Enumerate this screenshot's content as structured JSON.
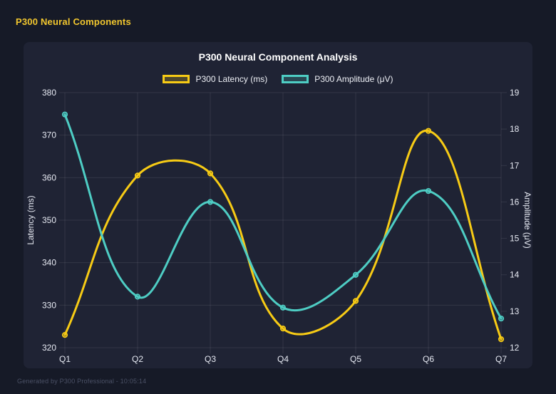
{
  "app": {
    "title": "P300 Neural Components"
  },
  "footer": {
    "note": "Generated by P300 Professional - 10:05:14"
  },
  "colors": {
    "background": "#161A27",
    "card_background": "#1F2334",
    "header_accent": "#F2C72E",
    "latency_series": "#F7CB15",
    "amplitude_series": "#4ECDC4",
    "grid": "rgba(255,255,255,0.09)",
    "tick_text": "#E6E9F2",
    "title_text": "#FFFFFF",
    "footer_text": "#4B5166"
  },
  "chart_data": {
    "type": "line",
    "title": "P300 Neural Component Analysis",
    "categories": [
      "Q1",
      "Q2",
      "Q3",
      "Q4",
      "Q5",
      "Q6",
      "Q7"
    ],
    "series": [
      {
        "name": "P300 Latency (ms)",
        "axis": "left",
        "color": "#F7CB15",
        "values": [
          323,
          360.5,
          361,
          324.5,
          331,
          371,
          322
        ]
      },
      {
        "name": "P300 Amplitude (μV)",
        "axis": "right",
        "color": "#4ECDC4",
        "values": [
          18.4,
          13.4,
          16.0,
          13.1,
          14.0,
          16.3,
          12.8
        ]
      }
    ],
    "left_axis": {
      "label": "Latency (ms)",
      "min": 320,
      "max": 380,
      "ticks": [
        380,
        370,
        360,
        350,
        340,
        330,
        320
      ]
    },
    "right_axis": {
      "label": "Amplitude (μV)",
      "min": 12,
      "max": 19,
      "ticks": [
        19,
        18,
        17,
        16,
        15,
        14,
        13,
        12
      ]
    },
    "legend_position": "top",
    "grid": true,
    "line_tension": 0.4,
    "point_radius": 3.2,
    "line_width": 3
  }
}
